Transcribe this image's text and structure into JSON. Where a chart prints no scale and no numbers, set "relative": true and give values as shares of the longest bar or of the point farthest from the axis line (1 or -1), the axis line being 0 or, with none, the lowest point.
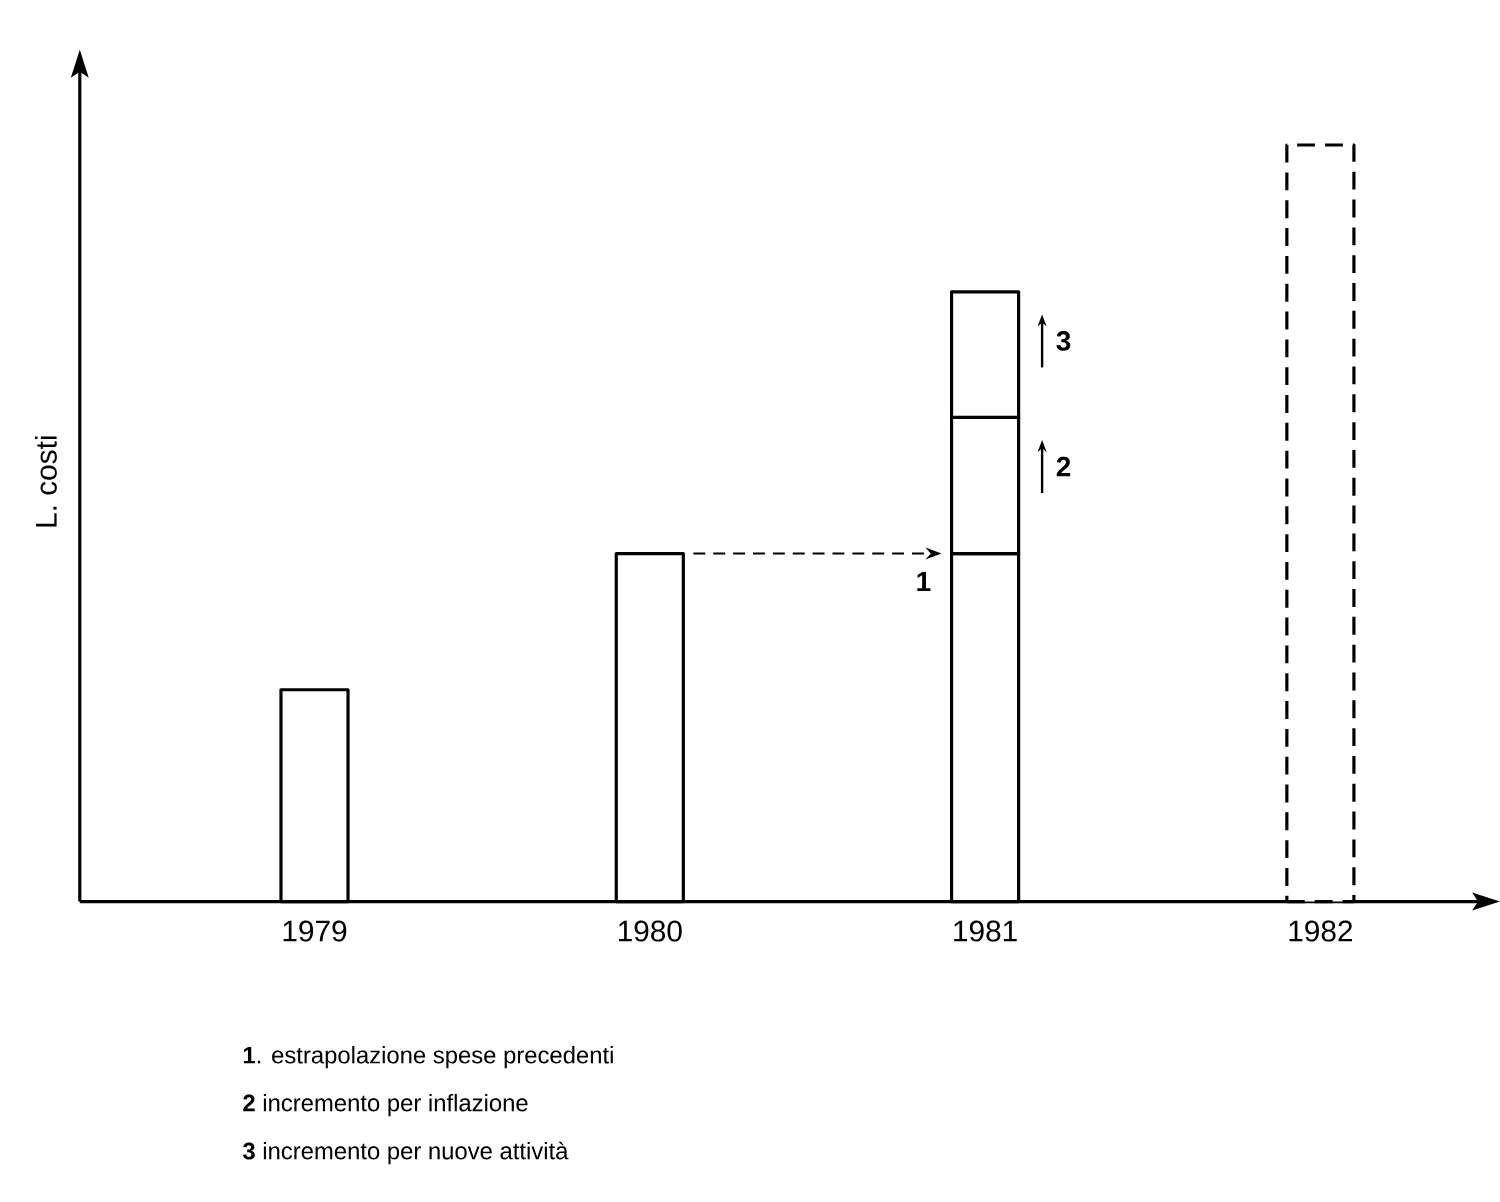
{
  "chart_data": {
    "type": "bar",
    "relative": true,
    "stacked": true,
    "legend": "right",
    "ylabel": "L. costi",
    "categories": [
      "1979",
      "1980",
      "1981",
      "1982"
    ],
    "series": [
      {
        "color": "#000000",
        "values": [
          0.28,
          0.46,
          0.46,
          null
        ]
      },
      {
        "name": "2",
        "color": "#000000",
        "values": [
          null,
          null,
          0.18,
          null
        ]
      },
      {
        "name": "3",
        "color": "#000000",
        "values": [
          null,
          null,
          0.166,
          null
        ]
      },
      {
        "color": "#000000",
        "line_style": "dashed",
        "values": [
          null,
          null,
          null,
          1.0
        ]
      }
    ],
    "annotations": [
      {
        "text": "1",
        "x": "1981",
        "y": 0.46
      },
      "**1**. estrapolazione spese precedenti",
      "**2** incremento per inflazione",
      "**3** incremento per nuove attività"
    ]
  }
}
